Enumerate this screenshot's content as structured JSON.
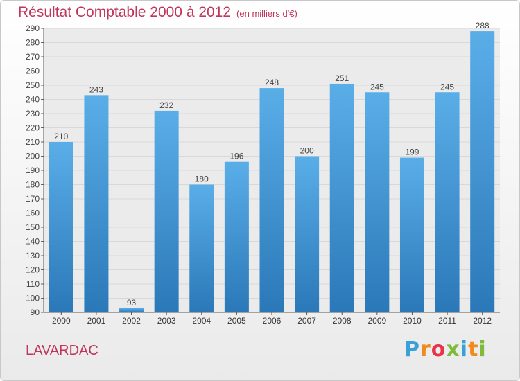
{
  "header": {
    "title": "Résultat Comptable 2000 à 2012",
    "subtitle": "(en milliers d'€)"
  },
  "commune": "LAVARDAC",
  "logo": {
    "text": "Proxiti",
    "letter_colors": [
      "#3aa0d8",
      "#f08a1c",
      "#e8334a",
      "#7cbc3a",
      "#3aa0d8",
      "#f08a1c",
      "#7cbc3a"
    ]
  },
  "colors": {
    "bar_top": "#5aaee8",
    "bar_bottom": "#2b78b8",
    "grid": "#d8d8d8",
    "plot_bg": "#ebebeb"
  },
  "chart_data": {
    "type": "bar",
    "categories": [
      "2000",
      "2001",
      "2002",
      "2003",
      "2004",
      "2005",
      "2006",
      "2007",
      "2008",
      "2009",
      "2010",
      "2011",
      "2012"
    ],
    "values": [
      210,
      243,
      93,
      232,
      180,
      196,
      248,
      200,
      251,
      245,
      199,
      245,
      288
    ],
    "ylim": [
      90,
      290
    ],
    "yticks": [
      90,
      100,
      110,
      120,
      130,
      140,
      150,
      160,
      170,
      180,
      190,
      200,
      210,
      220,
      230,
      240,
      250,
      260,
      270,
      280,
      290
    ],
    "grid": true,
    "data_labels": true
  }
}
